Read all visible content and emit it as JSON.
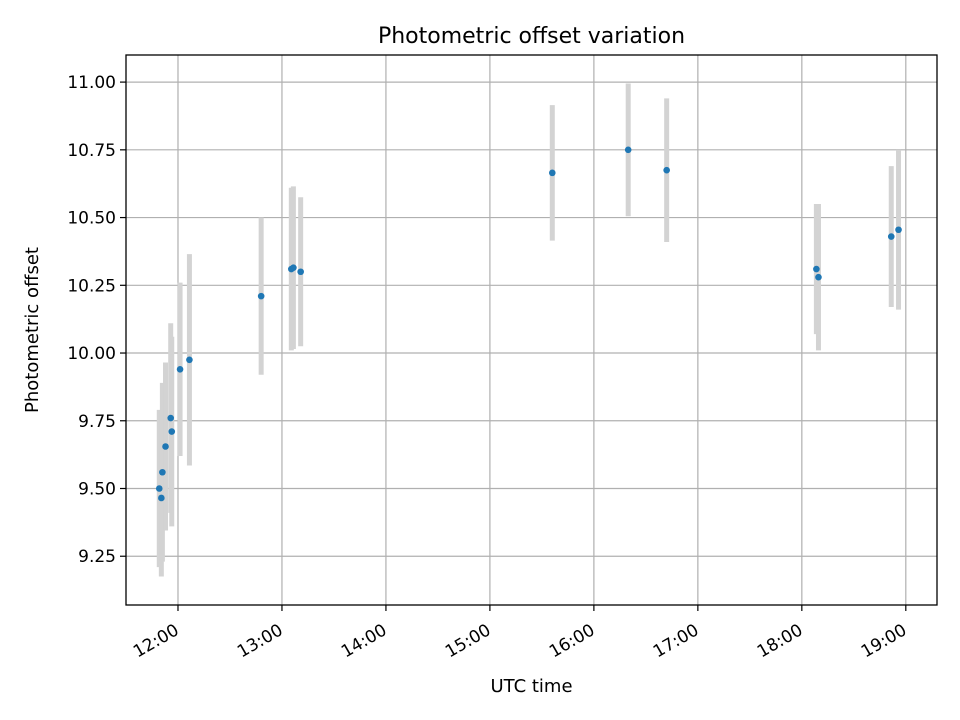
{
  "chart_data": {
    "type": "scatter",
    "title": "Photometric offset variation",
    "xlabel": "UTC time",
    "ylabel": "Photometric offset",
    "x_unit": "hours UTC",
    "xlim": [
      11.5,
      19.3
    ],
    "ylim": [
      9.07,
      11.1
    ],
    "x_ticks": [
      {
        "value": 12,
        "label": "12:00"
      },
      {
        "value": 13,
        "label": "13:00"
      },
      {
        "value": 14,
        "label": "14:00"
      },
      {
        "value": 15,
        "label": "15:00"
      },
      {
        "value": 16,
        "label": "16:00"
      },
      {
        "value": 17,
        "label": "17:00"
      },
      {
        "value": 18,
        "label": "18:00"
      },
      {
        "value": 19,
        "label": "19:00"
      }
    ],
    "y_ticks": [
      {
        "value": 9.25,
        "label": "9.25"
      },
      {
        "value": 9.5,
        "label": "9.50"
      },
      {
        "value": 9.75,
        "label": "9.75"
      },
      {
        "value": 10.0,
        "label": "10.00"
      },
      {
        "value": 10.25,
        "label": "10.25"
      },
      {
        "value": 10.5,
        "label": "10.50"
      },
      {
        "value": 10.75,
        "label": "10.75"
      },
      {
        "value": 11.0,
        "label": "11.00"
      }
    ],
    "grid": true,
    "marker_color": "#1f77b4",
    "errorbar_color": "#d3d3d3",
    "points": [
      {
        "x": 11.82,
        "y": 9.5,
        "err": 0.29
      },
      {
        "x": 11.84,
        "y": 9.465,
        "err": 0.29
      },
      {
        "x": 11.85,
        "y": 9.56,
        "err": 0.33
      },
      {
        "x": 11.88,
        "y": 9.655,
        "err": 0.31
      },
      {
        "x": 11.93,
        "y": 9.76,
        "err": 0.35
      },
      {
        "x": 11.94,
        "y": 9.71,
        "err": 0.35
      },
      {
        "x": 12.02,
        "y": 9.94,
        "err": 0.32
      },
      {
        "x": 12.11,
        "y": 9.975,
        "err": 0.39
      },
      {
        "x": 12.8,
        "y": 10.21,
        "err": 0.29
      },
      {
        "x": 13.09,
        "y": 10.31,
        "err": 0.3
      },
      {
        "x": 13.11,
        "y": 10.315,
        "err": 0.3
      },
      {
        "x": 13.18,
        "y": 10.3,
        "err": 0.275
      },
      {
        "x": 15.6,
        "y": 10.665,
        "err": 0.25
      },
      {
        "x": 16.33,
        "y": 10.75,
        "err": 0.245
      },
      {
        "x": 16.7,
        "y": 10.675,
        "err": 0.265
      },
      {
        "x": 18.14,
        "y": 10.31,
        "err": 0.24
      },
      {
        "x": 18.16,
        "y": 10.28,
        "err": 0.27
      },
      {
        "x": 18.86,
        "y": 10.43,
        "err": 0.26
      },
      {
        "x": 18.93,
        "y": 10.455,
        "err": 0.295
      }
    ]
  }
}
